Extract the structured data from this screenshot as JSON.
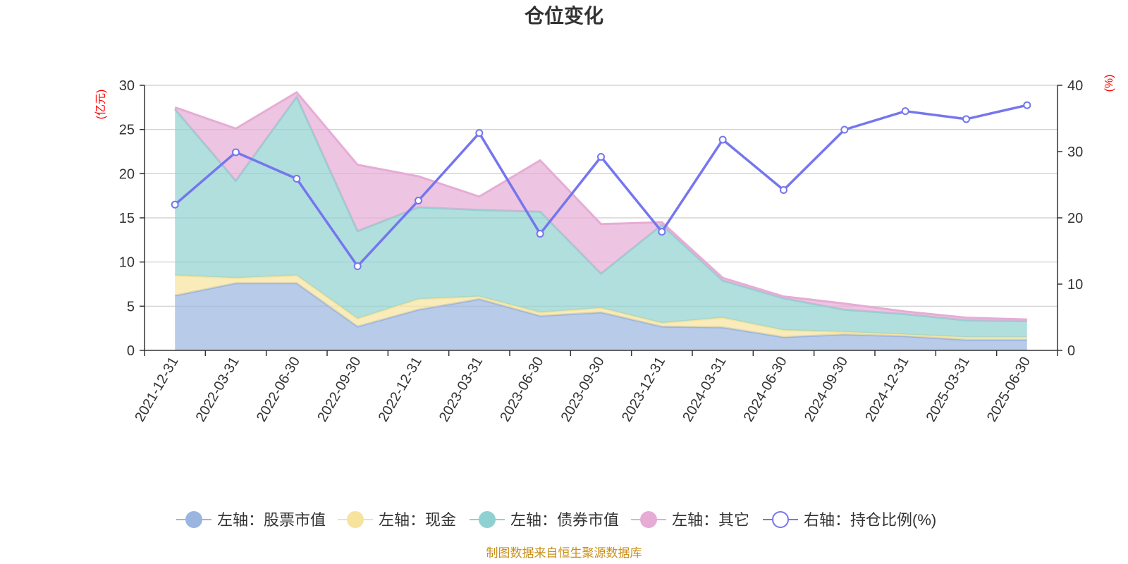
{
  "colors": {
    "stock": "#9ab5e0",
    "cash": "#f7e39c",
    "bond": "#8fd1d0",
    "other": "#e6acd5",
    "ratio": "#7576ee",
    "unit": "#ff0000",
    "source": "#c8901a"
  },
  "chart_data": {
    "type": "area",
    "title": "仓位变化",
    "left_axis_unit": "(亿元)",
    "right_axis_unit": "(%)",
    "source_note": "制图数据来自恒生聚源数据库",
    "categories": [
      "2021-12-31",
      "2022-03-31",
      "2022-06-30",
      "2022-09-30",
      "2022-12-31",
      "2023-03-31",
      "2023-06-30",
      "2023-09-30",
      "2023-12-31",
      "2024-03-31",
      "2024-06-30",
      "2024-09-30",
      "2024-12-31",
      "2025-03-31",
      "2025-06-30"
    ],
    "left_ylim": [
      0,
      30
    ],
    "left_ticks": [
      0,
      5,
      10,
      15,
      20,
      25,
      30
    ],
    "right_ylim": [
      0,
      40
    ],
    "right_ticks": [
      0,
      10,
      20,
      30,
      40
    ],
    "grid": true,
    "legend_position": "bottom",
    "stacked_series": [
      {
        "key": "stock",
        "name": "左轴：股票市值",
        "values": [
          6.2,
          7.6,
          7.6,
          2.7,
          4.6,
          5.8,
          3.9,
          4.3,
          2.7,
          2.6,
          1.5,
          1.8,
          1.6,
          1.2,
          1.2
        ]
      },
      {
        "key": "cash",
        "name": "左轴：现金",
        "values": [
          2.3,
          0.6,
          0.9,
          0.9,
          1.2,
          0.3,
          0.4,
          0.5,
          0.4,
          1.1,
          0.8,
          0.3,
          0.2,
          0.3,
          0.3
        ]
      },
      {
        "key": "bond",
        "name": "左轴：债券市值",
        "values": [
          18.8,
          11.0,
          20.2,
          9.9,
          10.4,
          9.8,
          11.4,
          3.9,
          11.1,
          4.2,
          3.6,
          2.5,
          2.3,
          1.9,
          1.8
        ]
      },
      {
        "key": "other",
        "name": "左轴：其它",
        "values": [
          0.2,
          5.9,
          0.5,
          7.5,
          3.5,
          1.5,
          5.8,
          5.6,
          0.3,
          0.3,
          0.2,
          0.7,
          0.3,
          0.3,
          0.2
        ]
      }
    ],
    "line_series": {
      "key": "ratio",
      "name": "右轴：持仓比例(%)",
      "values": [
        22.0,
        29.9,
        25.9,
        12.7,
        22.6,
        32.8,
        17.6,
        29.2,
        17.9,
        31.8,
        24.2,
        33.3,
        36.1,
        34.9,
        37.0
      ]
    }
  }
}
